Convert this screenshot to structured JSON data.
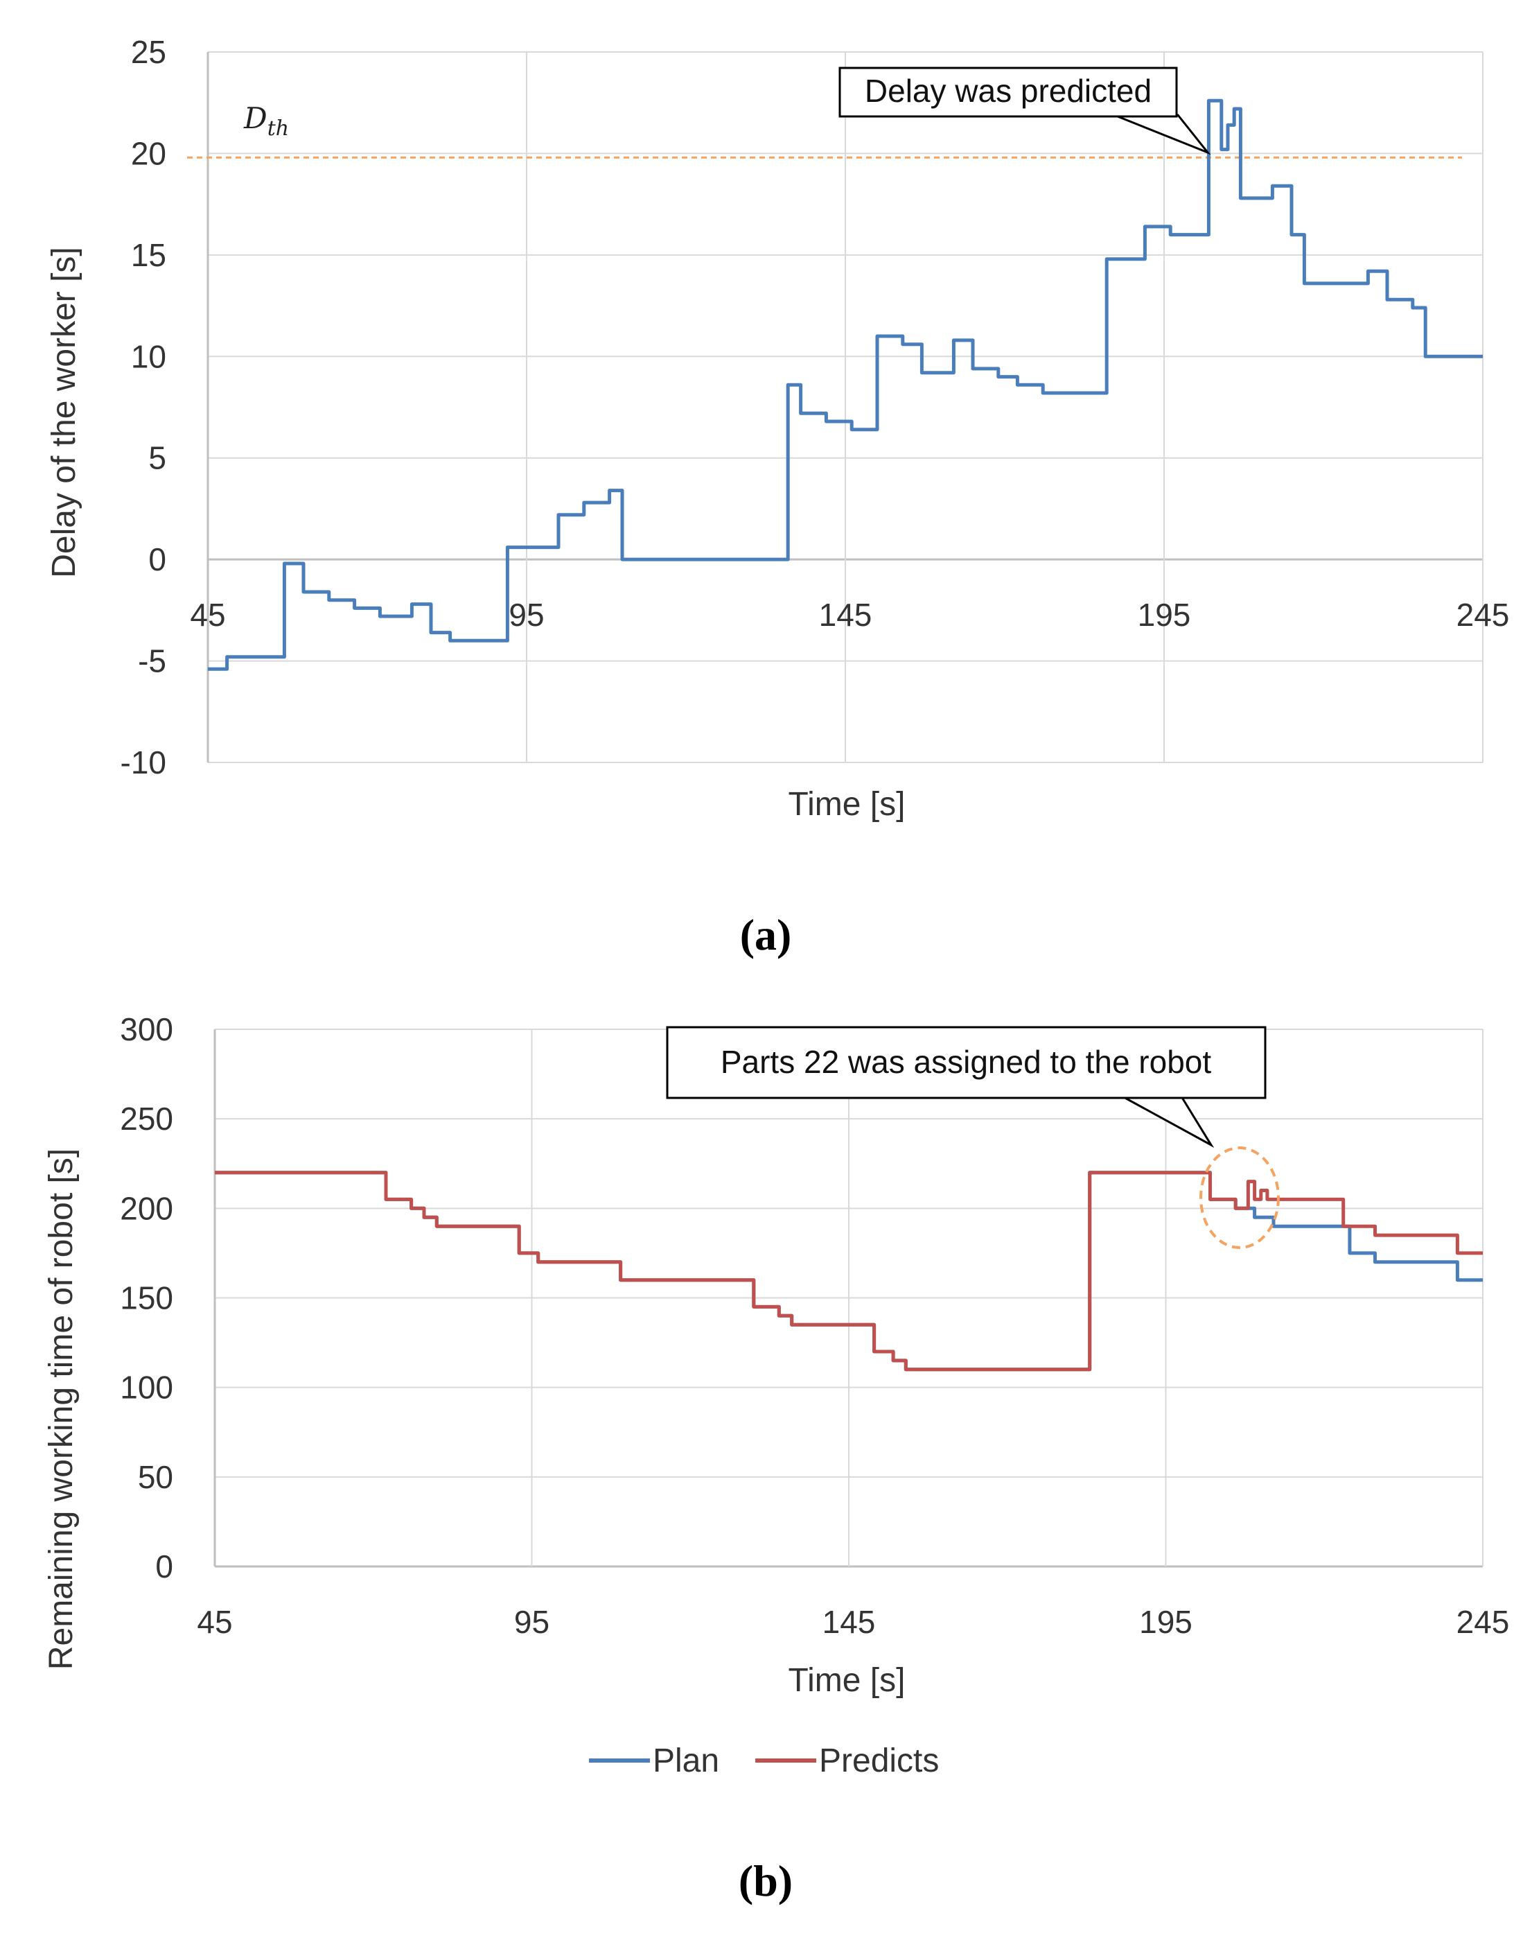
{
  "chart_data": [
    {
      "type": "line",
      "panel_label": "(a)",
      "ylabel": "Delay of the worker [s]",
      "xlabel": "Time [s]",
      "xlim": [
        45,
        245
      ],
      "ylim": [
        -10,
        25
      ],
      "xticks": [
        "45",
        "95",
        "145",
        "195",
        "245"
      ],
      "yticks": [
        "-10",
        "-5",
        "0",
        "5",
        "10",
        "15",
        "20",
        "25"
      ],
      "grid": true,
      "threshold": {
        "label_main": "D",
        "label_sub": "th",
        "value": 19.8,
        "color": "#f4a460"
      },
      "annotation": {
        "text": "Delay was predicted",
        "x": 205,
        "y": 19.8
      },
      "series": [
        {
          "name": "Delay",
          "color": "#4a7ebb",
          "points": [
            [
              45,
              -5.4
            ],
            [
              48,
              -5.4
            ],
            [
              48,
              -4.8
            ],
            [
              57,
              -4.8
            ],
            [
              57,
              -0.2
            ],
            [
              60,
              -0.2
            ],
            [
              60,
              -1.6
            ],
            [
              64,
              -1.6
            ],
            [
              64,
              -2.0
            ],
            [
              68,
              -2.0
            ],
            [
              68,
              -2.4
            ],
            [
              72,
              -2.4
            ],
            [
              72,
              -2.8
            ],
            [
              77,
              -2.8
            ],
            [
              77,
              -2.2
            ],
            [
              80,
              -2.2
            ],
            [
              80,
              -3.6
            ],
            [
              83,
              -3.6
            ],
            [
              83,
              -4.0
            ],
            [
              92,
              -4.0
            ],
            [
              92,
              0.6
            ],
            [
              100,
              0.6
            ],
            [
              100,
              2.2
            ],
            [
              104,
              2.2
            ],
            [
              104,
              2.8
            ],
            [
              108,
              2.8
            ],
            [
              108,
              3.4
            ],
            [
              110,
              3.4
            ],
            [
              110,
              0
            ],
            [
              136,
              0
            ],
            [
              136,
              8.6
            ],
            [
              138,
              8.6
            ],
            [
              138,
              7.2
            ],
            [
              142,
              7.2
            ],
            [
              142,
              6.8
            ],
            [
              146,
              6.8
            ],
            [
              146,
              6.4
            ],
            [
              150,
              6.4
            ],
            [
              150,
              11.0
            ],
            [
              154,
              11.0
            ],
            [
              154,
              10.6
            ],
            [
              157,
              10.6
            ],
            [
              157,
              9.2
            ],
            [
              162,
              9.2
            ],
            [
              162,
              10.8
            ],
            [
              165,
              10.8
            ],
            [
              165,
              9.4
            ],
            [
              169,
              9.4
            ],
            [
              169,
              9.0
            ],
            [
              172,
              9.0
            ],
            [
              172,
              8.6
            ],
            [
              176,
              8.6
            ],
            [
              176,
              8.2
            ],
            [
              186,
              8.2
            ],
            [
              186,
              14.8
            ],
            [
              192,
              14.8
            ],
            [
              192,
              16.4
            ],
            [
              196,
              16.4
            ],
            [
              196,
              16.0
            ],
            [
              202,
              16.0
            ],
            [
              202,
              22.6
            ],
            [
              204,
              22.6
            ],
            [
              204,
              20.2
            ],
            [
              205,
              20.2
            ],
            [
              205,
              21.4
            ],
            [
              206,
              21.4
            ],
            [
              206,
              22.2
            ],
            [
              207,
              22.2
            ],
            [
              207,
              17.8
            ],
            [
              212,
              17.8
            ],
            [
              212,
              18.4
            ],
            [
              215,
              18.4
            ],
            [
              215,
              16.0
            ],
            [
              217,
              16.0
            ],
            [
              217,
              13.6
            ],
            [
              227,
              13.6
            ],
            [
              227,
              14.2
            ],
            [
              230,
              14.2
            ],
            [
              230,
              12.8
            ],
            [
              234,
              12.8
            ],
            [
              234,
              12.4
            ],
            [
              236,
              12.4
            ],
            [
              236,
              10.0
            ],
            [
              245,
              10.0
            ]
          ]
        }
      ]
    },
    {
      "type": "line",
      "panel_label": "(b)",
      "ylabel": "Remaining working time of robot [s]",
      "xlabel": "Time [s]",
      "xlim": [
        45,
        245
      ],
      "ylim": [
        0,
        300
      ],
      "xticks": [
        "45",
        "95",
        "145",
        "195",
        "245"
      ],
      "yticks": [
        "0",
        "50",
        "100",
        "150",
        "200",
        "250",
        "300"
      ],
      "grid": true,
      "annotation": {
        "text": "Parts 22 was assigned to the robot",
        "x": 203,
        "y": 220
      },
      "legend": {
        "position": "bottom-center"
      },
      "series": [
        {
          "name": "Plan",
          "color": "#4a7ebb",
          "points": [
            [
              45,
              220
            ],
            [
              72,
              220
            ],
            [
              72,
              205
            ],
            [
              76,
              205
            ],
            [
              76,
              200
            ],
            [
              78,
              200
            ],
            [
              78,
              195
            ],
            [
              80,
              195
            ],
            [
              80,
              190
            ],
            [
              93,
              190
            ],
            [
              93,
              175
            ],
            [
              96,
              175
            ],
            [
              96,
              170
            ],
            [
              109,
              170
            ],
            [
              109,
              160
            ],
            [
              130,
              160
            ],
            [
              130,
              145
            ],
            [
              134,
              145
            ],
            [
              134,
              140
            ],
            [
              136,
              140
            ],
            [
              136,
              135
            ],
            [
              149,
              135
            ],
            [
              149,
              120
            ],
            [
              152,
              120
            ],
            [
              152,
              115
            ],
            [
              154,
              115
            ],
            [
              154,
              110
            ],
            [
              183,
              110
            ],
            [
              183,
              220
            ],
            [
              202,
              220
            ],
            [
              202,
              205
            ],
            [
              206,
              205
            ],
            [
              206,
              200
            ],
            [
              209,
              200
            ],
            [
              209,
              195
            ],
            [
              212,
              195
            ],
            [
              212,
              190
            ],
            [
              224,
              190
            ],
            [
              224,
              175
            ],
            [
              228,
              175
            ],
            [
              228,
              170
            ],
            [
              241,
              170
            ],
            [
              241,
              160
            ],
            [
              245,
              160
            ]
          ]
        },
        {
          "name": "Predicts",
          "color": "#c0504d",
          "points": [
            [
              45,
              220
            ],
            [
              72,
              220
            ],
            [
              72,
              205
            ],
            [
              76,
              205
            ],
            [
              76,
              200
            ],
            [
              78,
              200
            ],
            [
              78,
              195
            ],
            [
              80,
              195
            ],
            [
              80,
              190
            ],
            [
              93,
              190
            ],
            [
              93,
              175
            ],
            [
              96,
              175
            ],
            [
              96,
              170
            ],
            [
              109,
              170
            ],
            [
              109,
              160
            ],
            [
              130,
              160
            ],
            [
              130,
              145
            ],
            [
              134,
              145
            ],
            [
              134,
              140
            ],
            [
              136,
              140
            ],
            [
              136,
              135
            ],
            [
              149,
              135
            ],
            [
              149,
              120
            ],
            [
              152,
              120
            ],
            [
              152,
              115
            ],
            [
              154,
              115
            ],
            [
              154,
              110
            ],
            [
              183,
              110
            ],
            [
              183,
              220
            ],
            [
              202,
              220
            ],
            [
              202,
              205
            ],
            [
              206,
              205
            ],
            [
              206,
              200
            ],
            [
              208,
              200
            ],
            [
              208,
              215
            ],
            [
              209,
              215
            ],
            [
              209,
              205
            ],
            [
              210,
              205
            ],
            [
              210,
              210
            ],
            [
              211,
              210
            ],
            [
              211,
              205
            ],
            [
              223,
              205
            ],
            [
              223,
              190
            ],
            [
              228,
              190
            ],
            [
              228,
              185
            ],
            [
              241,
              185
            ],
            [
              241,
              175
            ],
            [
              245,
              175
            ]
          ]
        }
      ]
    }
  ]
}
